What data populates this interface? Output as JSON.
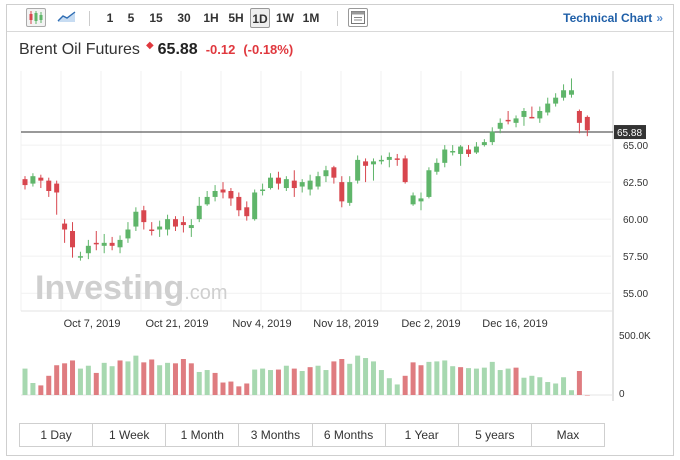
{
  "toolbar": {
    "intervals": [
      "1",
      "5",
      "15",
      "30",
      "1H",
      "5H",
      "1D",
      "1W",
      "1M"
    ],
    "active_interval": "1D",
    "technical_chart_label": "Technical Chart",
    "technical_chart_arrow": "»"
  },
  "instrument": {
    "name": "Brent Oil Futures",
    "price": "65.88",
    "change": "-0.12",
    "change_pct": "(-0.18%)"
  },
  "colors": {
    "up": "#5fb56a",
    "down": "#d8464e",
    "vol_up": "#a7d8b0",
    "vol_down": "#df7c80",
    "brand": "#1f5fa8"
  },
  "watermark": "Investing.com",
  "chart_data": {
    "type": "candlestick",
    "price_axis": {
      "ticks": [
        "65.00",
        "62.50",
        "60.00",
        "57.50",
        "55.00"
      ],
      "current_label": "65.88",
      "range": [
        53.8,
        70.0
      ]
    },
    "volume_axis": {
      "ticks": [
        "500.0K",
        "0"
      ]
    },
    "x_labels": [
      "Oct 7, 2019",
      "Oct 21, 2019",
      "Nov 4, 2019",
      "Nov 18, 2019",
      "Dec 2, 2019",
      "Dec 16, 2019"
    ],
    "current_price": 65.88,
    "candles": [
      [
        62.7,
        62.3,
        62.9,
        62.0
      ],
      [
        62.4,
        62.9,
        63.1,
        62.2
      ],
      [
        62.8,
        62.6,
        63.0,
        62.1
      ],
      [
        62.6,
        61.9,
        62.8,
        61.5
      ],
      [
        62.4,
        61.8,
        62.6,
        60.3
      ],
      [
        59.7,
        59.3,
        60.0,
        58.4
      ],
      [
        59.2,
        58.1,
        59.8,
        57.4
      ],
      [
        57.4,
        57.5,
        57.8,
        57.2
      ],
      [
        57.7,
        58.2,
        58.6,
        57.3
      ],
      [
        58.4,
        58.3,
        59.2,
        57.9
      ],
      [
        58.2,
        58.4,
        59.0,
        57.7
      ],
      [
        58.4,
        58.2,
        58.8,
        57.9
      ],
      [
        58.1,
        58.6,
        58.9,
        57.7
      ],
      [
        58.7,
        59.3,
        59.8,
        58.4
      ],
      [
        59.5,
        60.5,
        60.8,
        59.2
      ],
      [
        60.6,
        59.8,
        60.9,
        59.3
      ],
      [
        59.3,
        59.2,
        59.8,
        58.9
      ],
      [
        59.3,
        59.5,
        59.9,
        58.8
      ],
      [
        59.3,
        60.0,
        60.3,
        58.9
      ],
      [
        60.0,
        59.5,
        60.2,
        59.2
      ],
      [
        59.8,
        59.6,
        60.2,
        59.1
      ],
      [
        59.4,
        59.6,
        60.0,
        58.8
      ],
      [
        60.0,
        60.9,
        61.5,
        59.8
      ],
      [
        61.0,
        61.5,
        61.9,
        60.9
      ],
      [
        61.5,
        61.9,
        62.3,
        61.2
      ],
      [
        62.0,
        61.8,
        62.5,
        61.4
      ],
      [
        61.9,
        61.4,
        62.1,
        60.9
      ],
      [
        61.5,
        60.6,
        61.8,
        60.2
      ],
      [
        60.8,
        60.2,
        61.2,
        59.9
      ],
      [
        60.0,
        61.8,
        62.0,
        59.9
      ],
      [
        61.9,
        62.0,
        62.4,
        61.6
      ],
      [
        62.1,
        62.8,
        63.1,
        62.0
      ],
      [
        62.8,
        62.4,
        63.2,
        62.0
      ],
      [
        62.1,
        62.7,
        62.9,
        61.9
      ],
      [
        62.6,
        62.1,
        63.3,
        61.5
      ],
      [
        62.2,
        62.5,
        62.7,
        61.8
      ],
      [
        62.0,
        62.6,
        63.0,
        61.6
      ],
      [
        62.2,
        62.9,
        63.2,
        62.0
      ],
      [
        62.9,
        63.3,
        63.6,
        62.5
      ],
      [
        63.5,
        62.8,
        63.6,
        62.4
      ],
      [
        62.5,
        61.2,
        62.9,
        60.8
      ],
      [
        61.1,
        62.5,
        62.9,
        60.9
      ],
      [
        62.6,
        64.0,
        64.3,
        62.4
      ],
      [
        63.9,
        63.6,
        64.1,
        62.5
      ],
      [
        63.7,
        63.9,
        64.1,
        62.6
      ],
      [
        63.9,
        64.0,
        64.3,
        63.7
      ],
      [
        64.0,
        64.2,
        64.5,
        63.5
      ],
      [
        64.1,
        64.0,
        64.4,
        63.6
      ],
      [
        64.1,
        62.5,
        64.3,
        62.4
      ],
      [
        61.0,
        61.6,
        61.8,
        60.9
      ],
      [
        61.2,
        61.4,
        61.8,
        60.6
      ],
      [
        61.5,
        63.3,
        63.5,
        61.4
      ],
      [
        63.2,
        63.8,
        64.1,
        63.0
      ],
      [
        63.8,
        64.7,
        65.0,
        63.5
      ],
      [
        64.5,
        64.6,
        65.0,
        64.3
      ],
      [
        64.4,
        64.9,
        65.0,
        63.6
      ],
      [
        64.7,
        64.4,
        65.0,
        64.2
      ],
      [
        64.5,
        64.9,
        65.2,
        64.4
      ],
      [
        65.0,
        65.2,
        65.4,
        64.9
      ],
      [
        65.2,
        65.9,
        66.2,
        65.0
      ],
      [
        66.1,
        66.5,
        66.8,
        65.8
      ],
      [
        66.7,
        66.6,
        67.3,
        66.4
      ],
      [
        66.5,
        66.8,
        67.0,
        66.2
      ],
      [
        66.9,
        67.3,
        67.5,
        66.3
      ],
      [
        66.9,
        66.8,
        67.6,
        66.8
      ],
      [
        66.8,
        67.3,
        67.6,
        66.5
      ],
      [
        67.2,
        67.8,
        68.2,
        67.0
      ],
      [
        67.8,
        68.2,
        68.5,
        67.6
      ],
      [
        68.2,
        68.7,
        69.1,
        68.0
      ],
      [
        68.4,
        68.7,
        69.5,
        68.2
      ],
      [
        67.3,
        66.5,
        67.4,
        65.8
      ],
      [
        66.9,
        66.0,
        67.0,
        65.6
      ]
    ],
    "volumes": [
      [
        0.55,
        1
      ],
      [
        0.25,
        1
      ],
      [
        0.2,
        0
      ],
      [
        0.4,
        0
      ],
      [
        0.62,
        0
      ],
      [
        0.66,
        0
      ],
      [
        0.72,
        0
      ],
      [
        0.55,
        1
      ],
      [
        0.61,
        1
      ],
      [
        0.46,
        0
      ],
      [
        0.67,
        1
      ],
      [
        0.6,
        1
      ],
      [
        0.72,
        0
      ],
      [
        0.7,
        1
      ],
      [
        0.82,
        1
      ],
      [
        0.68,
        0
      ],
      [
        0.74,
        0
      ],
      [
        0.62,
        1
      ],
      [
        0.67,
        1
      ],
      [
        0.66,
        0
      ],
      [
        0.75,
        0
      ],
      [
        0.66,
        0
      ],
      [
        0.48,
        1
      ],
      [
        0.52,
        1
      ],
      [
        0.46,
        0
      ],
      [
        0.26,
        0
      ],
      [
        0.28,
        0
      ],
      [
        0.18,
        0
      ],
      [
        0.24,
        0
      ],
      [
        0.53,
        1
      ],
      [
        0.55,
        1
      ],
      [
        0.52,
        1
      ],
      [
        0.53,
        0
      ],
      [
        0.61,
        1
      ],
      [
        0.55,
        0
      ],
      [
        0.5,
        1
      ],
      [
        0.58,
        0
      ],
      [
        0.61,
        1
      ],
      [
        0.52,
        1
      ],
      [
        0.7,
        0
      ],
      [
        0.75,
        0
      ],
      [
        0.65,
        1
      ],
      [
        0.82,
        1
      ],
      [
        0.77,
        1
      ],
      [
        0.7,
        1
      ],
      [
        0.52,
        1
      ],
      [
        0.35,
        1
      ],
      [
        0.22,
        1
      ],
      [
        0.4,
        0
      ],
      [
        0.68,
        0
      ],
      [
        0.62,
        0
      ],
      [
        0.69,
        1
      ],
      [
        0.7,
        1
      ],
      [
        0.72,
        1
      ],
      [
        0.6,
        1
      ],
      [
        0.58,
        0
      ],
      [
        0.56,
        1
      ],
      [
        0.55,
        1
      ],
      [
        0.57,
        1
      ],
      [
        0.69,
        1
      ],
      [
        0.52,
        1
      ],
      [
        0.55,
        1
      ],
      [
        0.57,
        0
      ],
      [
        0.36,
        1
      ],
      [
        0.4,
        1
      ],
      [
        0.37,
        1
      ],
      [
        0.27,
        1
      ],
      [
        0.24,
        1
      ],
      [
        0.37,
        1
      ],
      [
        0.1,
        1
      ],
      [
        0.5,
        0
      ],
      [
        0.0,
        0
      ]
    ]
  },
  "range_buttons": [
    "1 Day",
    "1 Week",
    "1 Month",
    "3 Months",
    "6 Months",
    "1 Year",
    "5 years",
    "Max"
  ],
  "selected_range": ""
}
